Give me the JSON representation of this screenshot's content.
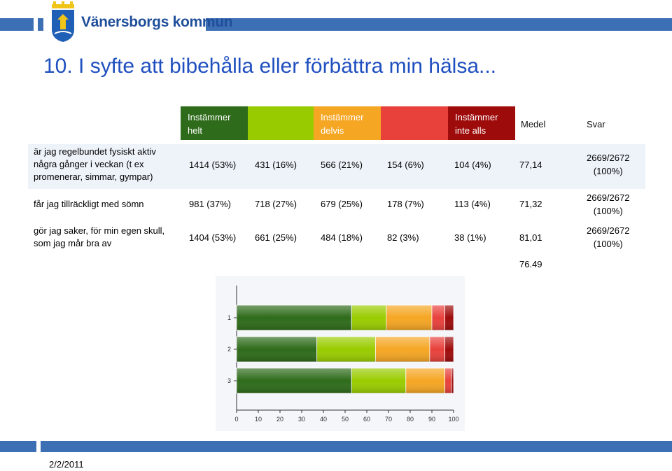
{
  "header": {
    "org_name": "Vänersborgs kommun",
    "title": "10. I syfte att bibehålla eller förbättra min hälsa..."
  },
  "table": {
    "headers": [
      {
        "label": "Instämmer\nhelt",
        "color": "#2e6b1a"
      },
      {
        "label": "",
        "color": "#99cc00"
      },
      {
        "label": "Instämmer\ndelvis",
        "color": "#f5a623"
      },
      {
        "label": "",
        "color": "#e8413c"
      },
      {
        "label": "Instämmer\ninte alls",
        "color": "#9e0b0b"
      }
    ],
    "medel_label": "Medel",
    "svar_label": "Svar",
    "rows": [
      {
        "label": "är jag regelbundet fysiskt aktiv några gånger i veckan (t ex promenerar,  simmar, gympar)",
        "cells": [
          "1414 (53%)",
          "431 (16%)",
          "566 (21%)",
          "154 (6%)",
          "104 (4%)"
        ],
        "medel": "77,14",
        "svar": "2669/2672\n(100%)"
      },
      {
        "label": "får jag tillräckligt med sömn",
        "cells": [
          "981 (37%)",
          "718 (27%)",
          "679 (25%)",
          "178 (7%)",
          "113 (4%)"
        ],
        "medel": "71,32",
        "svar": "2669/2672\n(100%)"
      },
      {
        "label": "gör jag saker, för min egen skull, som jag mår bra av",
        "cells": [
          "1404 (53%)",
          "661 (25%)",
          "484 (18%)",
          "82 (3%)",
          "38 (1%)"
        ],
        "medel": "81,01",
        "svar": "2669/2672\n(100%)"
      }
    ],
    "total_medel": "76.49"
  },
  "chart_data": {
    "type": "bar",
    "orientation": "horizontal",
    "stacked": true,
    "categories": [
      "1",
      "2",
      "3"
    ],
    "series": [
      {
        "values": [
          53,
          37,
          53
        ],
        "color": "#2e6b1a"
      },
      {
        "values": [
          16,
          27,
          25
        ],
        "color": "#99cc00"
      },
      {
        "values": [
          21,
          25,
          18
        ],
        "color": "#f5a623"
      },
      {
        "values": [
          6,
          7,
          3
        ],
        "color": "#e8413c"
      },
      {
        "values": [
          4,
          4,
          1
        ],
        "color": "#9e0b0b"
      }
    ],
    "xlim": [
      0,
      100
    ],
    "xticks": [
      "0",
      "10",
      "20",
      "30",
      "40",
      "50",
      "60",
      "70",
      "80",
      "90",
      "100"
    ],
    "grid": false
  },
  "footer": {
    "date": "2/2/2011"
  }
}
